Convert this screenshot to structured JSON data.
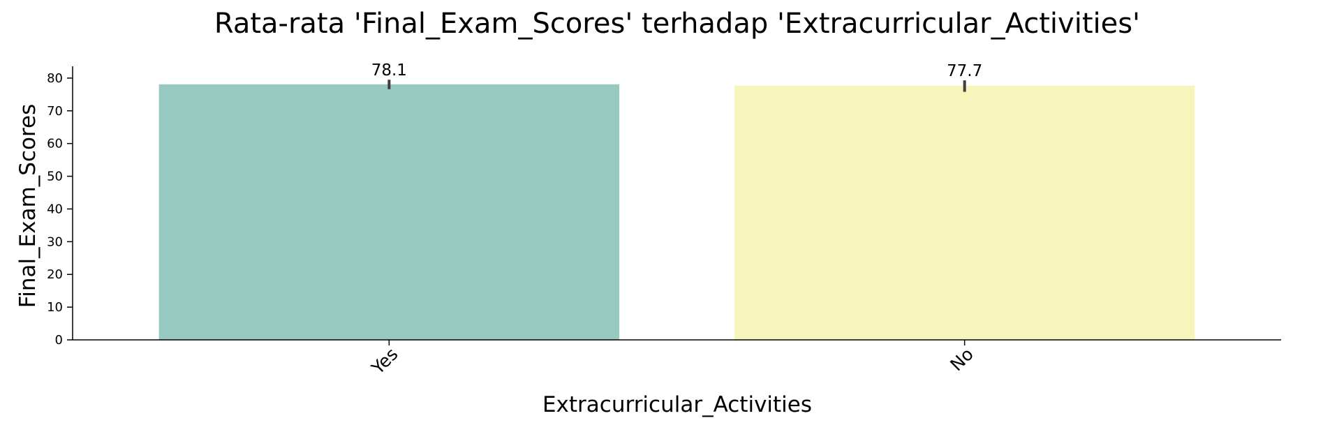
{
  "chart_data": {
    "type": "bar",
    "title": "Rata-rata 'Final_Exam_Scores' terhadap 'Extracurricular_Activities'",
    "xlabel": "Extracurricular_Activities",
    "ylabel": "Final_Exam_Scores",
    "categories": [
      "Yes",
      "No"
    ],
    "values": [
      78.1,
      77.7
    ],
    "data_labels": [
      "78.1",
      "77.7"
    ],
    "error_bars": [
      [
        76.6,
        79.5
      ],
      [
        75.8,
        79.3
      ]
    ],
    "colors": [
      "#98c9c1",
      "#f6f6bc"
    ],
    "ylim": [
      0,
      83.6
    ],
    "yticks": [
      0,
      10,
      20,
      30,
      40,
      50,
      60,
      70,
      80
    ],
    "grid": false,
    "legend": "none"
  }
}
